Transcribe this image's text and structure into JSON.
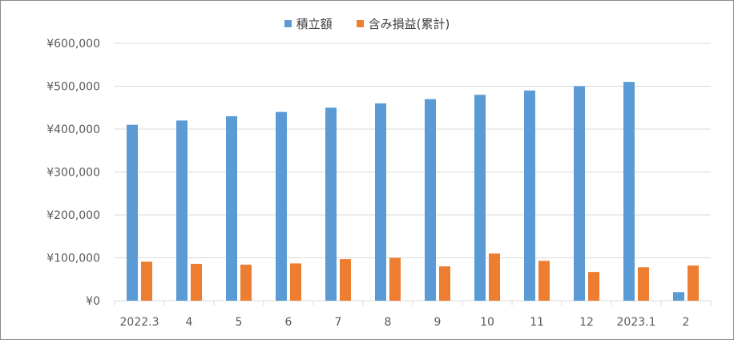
{
  "colors": {
    "series_1": "#5b9bd5",
    "series_2": "#ed7d31",
    "grid": "#d9d9d9",
    "axis_text": "#595959",
    "frame": "#8a8a8a"
  },
  "legend": {
    "items": [
      {
        "label": "積立額",
        "color": "#5b9bd5"
      },
      {
        "label": "含み損益(累計)",
        "color": "#ed7d31"
      }
    ],
    "position": "top"
  },
  "chart_data": {
    "type": "bar",
    "title": "",
    "xlabel": "",
    "ylabel": "",
    "categories": [
      "2022.3",
      "4",
      "5",
      "6",
      "7",
      "8",
      "9",
      "10",
      "11",
      "12",
      "2023.1",
      "2"
    ],
    "series": [
      {
        "name": "積立額",
        "color": "#5b9bd5",
        "values": [
          410000,
          420000,
          430000,
          440000,
          450000,
          460000,
          470000,
          480000,
          490000,
          500000,
          510000,
          20000
        ]
      },
      {
        "name": "含み損益(累計)",
        "color": "#ed7d31",
        "values": [
          91000,
          86000,
          84000,
          87000,
          97000,
          100000,
          80000,
          110000,
          93000,
          67000,
          78000,
          82000
        ]
      }
    ],
    "ylim": [
      0,
      600000
    ],
    "yticks": [
      0,
      100000,
      200000,
      300000,
      400000,
      500000,
      600000
    ],
    "ytick_labels": [
      "¥0",
      "¥100,000",
      "¥200,000",
      "¥300,000",
      "¥400,000",
      "¥500,000",
      "¥600,000"
    ],
    "grid": true,
    "legend_position": "top"
  }
}
